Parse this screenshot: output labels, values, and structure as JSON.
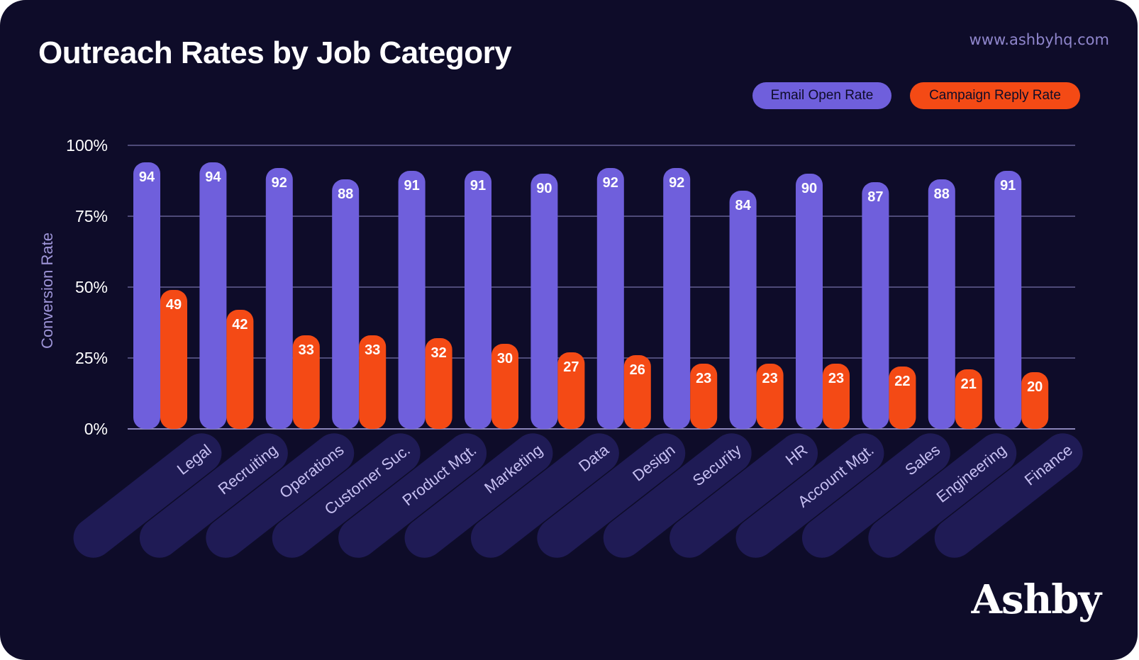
{
  "header": {
    "title": "Outreach Rates by Job Category",
    "site": "www.ashbyhq.com"
  },
  "brand": "Ashby",
  "colors": {
    "background": "#0e0c29",
    "email_open": "#6f5fdc",
    "campaign_reply": "#f44a15",
    "category_pill": "#1f1b55",
    "axis_label": "#9e95d8",
    "category_label": "#c7c0f2"
  },
  "chart_data": {
    "type": "bar",
    "title": "Outreach Rates by Job Category",
    "ylabel": "Conversion Rate",
    "xlabel": "",
    "ylim": [
      0,
      100
    ],
    "yticks": [
      0,
      25,
      50,
      75,
      100
    ],
    "ytick_labels": [
      "0%",
      "25%",
      "50%",
      "75%",
      "100%"
    ],
    "grid": true,
    "legend_position": "top-right",
    "categories": [
      "Legal",
      "Recruiting",
      "Operations",
      "Customer Suc.",
      "Product Mgt.",
      "Marketing",
      "Data",
      "Design",
      "Security",
      "HR",
      "Account Mgt.",
      "Sales",
      "Engineering",
      "Finance"
    ],
    "series": [
      {
        "name": "Email Open Rate",
        "values": [
          94,
          94,
          92,
          88,
          91,
          91,
          90,
          92,
          92,
          84,
          90,
          87,
          88,
          91
        ]
      },
      {
        "name": "Campaign Reply Rate",
        "values": [
          49,
          42,
          33,
          33,
          32,
          30,
          27,
          26,
          23,
          23,
          23,
          22,
          21,
          20
        ]
      }
    ]
  }
}
